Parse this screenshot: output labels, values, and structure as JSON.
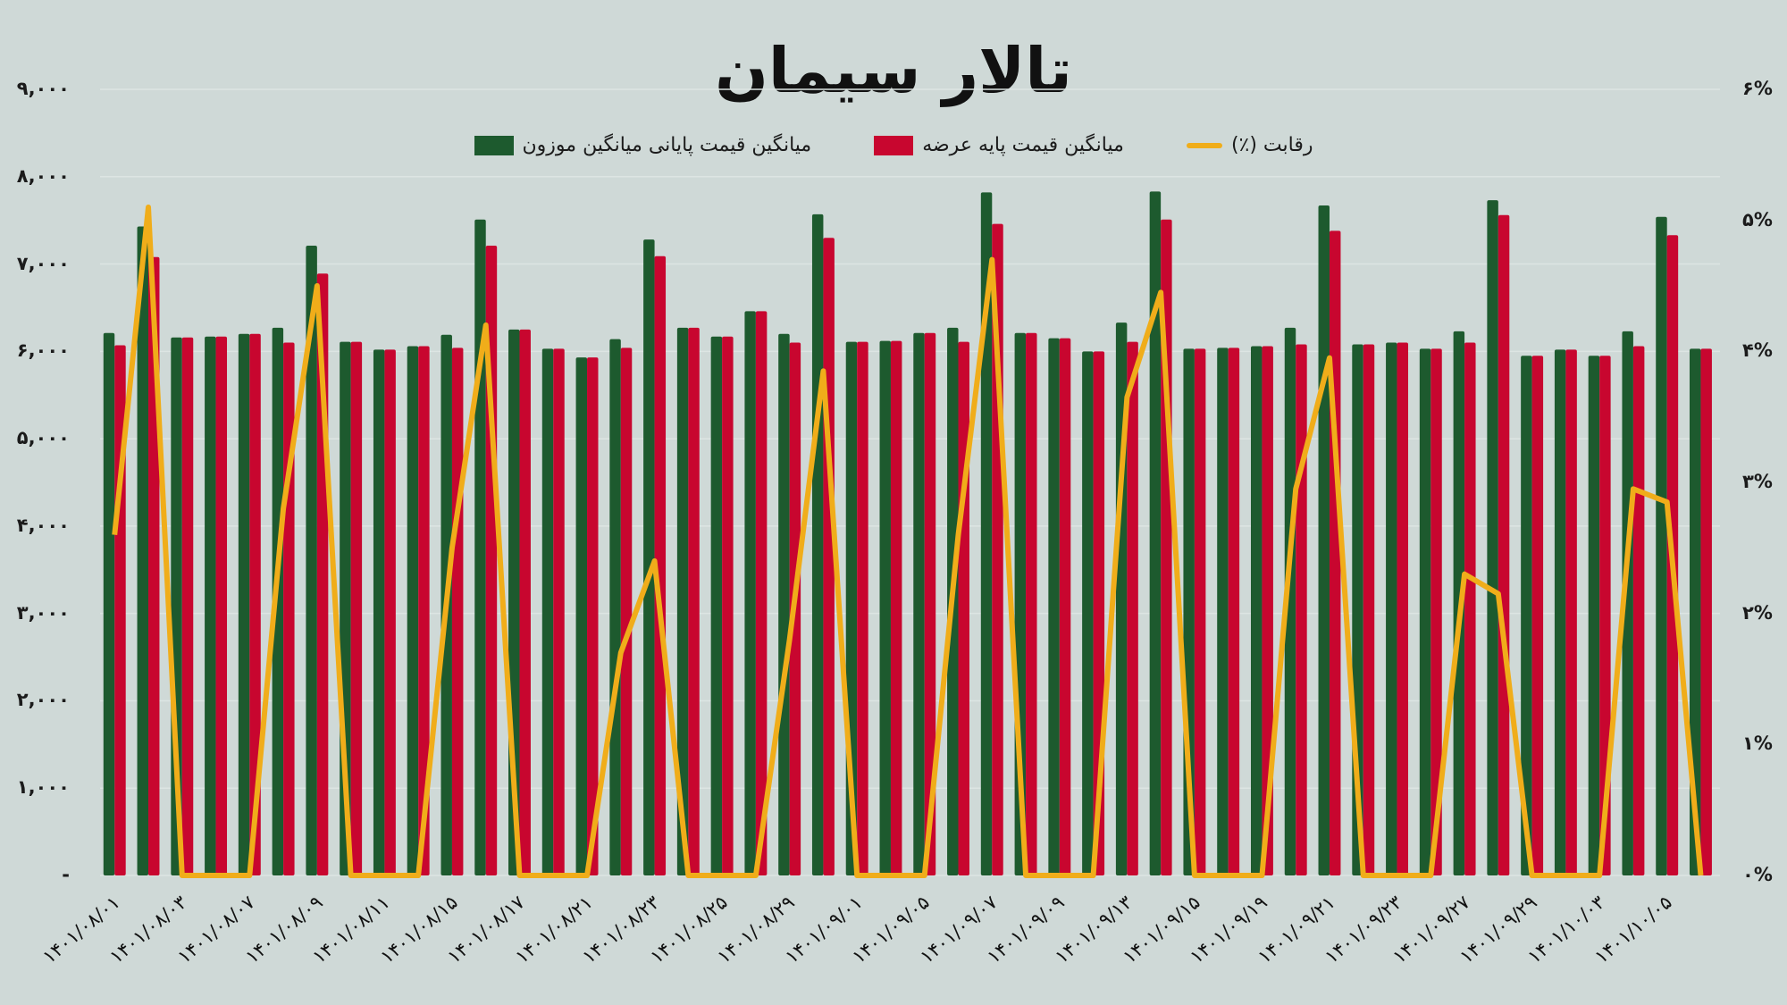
{
  "title": "تالار سیمان",
  "legend": [
    {
      "label": "رقابت (٪)",
      "type": "line",
      "color": "#f0ad1a"
    },
    {
      "label": "میانگین قیمت پایه عرضه",
      "type": "bar",
      "color": "#c8062f"
    },
    {
      "label": "میانگین قیمت پایانی میانگین موزون",
      "type": "bar",
      "color": "#1d5a2e"
    }
  ],
  "y_left_ticks": [
    "۹,۰۰۰",
    "۸,۰۰۰",
    "۷,۰۰۰",
    "۶,۰۰۰",
    "۵,۰۰۰",
    "۴,۰۰۰",
    "۳,۰۰۰",
    "۲,۰۰۰",
    "۱,۰۰۰",
    "-"
  ],
  "y_right_ticks": [
    "۶%",
    "۵%",
    "۴%",
    "۳%",
    "۲%",
    "۱%",
    "۰%"
  ],
  "x_labels": [
    "۱۴۰۱/۰۸/۰۱",
    "۱۴۰۱/۰۸/۰۳",
    "۱۴۰۱/۰۸/۰۷",
    "۱۴۰۱/۰۸/۰۹",
    "۱۴۰۱/۰۸/۱۱",
    "۱۴۰۱/۰۸/۱۵",
    "۱۴۰۱/۰۸/۱۷",
    "۱۴۰۱/۰۸/۲۱",
    "۱۴۰۱/۰۸/۲۳",
    "۱۴۰۱/۰۸/۲۵",
    "۱۴۰۱/۰۸/۲۹",
    "۱۴۰۱/۰۹/۰۱",
    "۱۴۰۱/۰۹/۰۵",
    "۱۴۰۱/۰۹/۰۷",
    "۱۴۰۱/۰۹/۰۹",
    "۱۴۰۱/۰۹/۱۳",
    "۱۴۰۱/۰۹/۱۵",
    "۱۴۰۱/۰۹/۱۹",
    "۱۴۰۱/۰۹/۲۱",
    "۱۴۰۱/۰۹/۲۳",
    "۱۴۰۱/۰۹/۲۷",
    "۱۴۰۱/۰۹/۲۹",
    "۱۴۰۱/۱۰/۰۳",
    "۱۴۰۱/۱۰/۰۵"
  ],
  "chart_data": {
    "type": "bar",
    "title": "تالار سیمان",
    "xlabel": "",
    "ylabel": "",
    "ylim": [
      0,
      9000
    ],
    "y2lim": [
      0,
      6
    ],
    "grid": true,
    "legend_position": "top",
    "categories": [
      "1401/08/01",
      "",
      "1401/08/03",
      "",
      "1401/08/07",
      "",
      "1401/08/09",
      "",
      "1401/08/11",
      "",
      "1401/08/15",
      "",
      "1401/08/17",
      "",
      "1401/08/21",
      "",
      "1401/08/23",
      "",
      "1401/08/25",
      "",
      "1401/08/29",
      "",
      "1401/09/01",
      "",
      "1401/09/05",
      "",
      "1401/09/07",
      "",
      "1401/09/09",
      "",
      "1401/09/13",
      "",
      "1401/09/15",
      "",
      "1401/09/19",
      "",
      "1401/09/21",
      "",
      "1401/09/23",
      "",
      "1401/09/27",
      "",
      "1401/09/29",
      "",
      "1401/10/03",
      "",
      "1401/10/05",
      ""
    ],
    "series": [
      {
        "name": "میانگین قیمت پایانی میانگین موزون",
        "type": "bar",
        "axis": "left",
        "color": "#1d5a2e",
        "values": [
          6210,
          7430,
          6160,
          6170,
          6200,
          6270,
          7210,
          6110,
          6020,
          6060,
          6190,
          7510,
          6250,
          6030,
          5930,
          6140,
          7280,
          6270,
          6170,
          6460,
          6200,
          7570,
          6110,
          6120,
          6210,
          6270,
          7820,
          6210,
          6150,
          6000,
          6330,
          7830,
          6030,
          6040,
          6060,
          6270,
          7670,
          6080,
          6100,
          6030,
          6230,
          7730,
          5950,
          6020,
          5950,
          6230,
          7540,
          6030
        ]
      },
      {
        "name": "میانگین قیمت پایه عرضه",
        "type": "bar",
        "axis": "left",
        "color": "#c8062f",
        "values": [
          6070,
          7080,
          6160,
          6170,
          6200,
          6100,
          6890,
          6110,
          6020,
          6060,
          6040,
          7210,
          6250,
          6030,
          5930,
          6040,
          7090,
          6270,
          6170,
          6460,
          6100,
          7300,
          6110,
          6120,
          6210,
          6110,
          7460,
          6210,
          6150,
          6000,
          6110,
          7510,
          6030,
          6040,
          6060,
          6080,
          7380,
          6080,
          6100,
          6030,
          6100,
          7560,
          5950,
          6020,
          5950,
          6060,
          7330,
          6030
        ]
      },
      {
        "name": "رقابت (٪)",
        "type": "line",
        "axis": "right",
        "color": "#f0ad1a",
        "values": [
          2.6,
          5.1,
          0,
          0,
          0,
          2.8,
          4.5,
          0,
          0,
          0,
          2.5,
          4.2,
          0,
          0,
          0,
          1.7,
          2.4,
          0,
          0,
          0,
          1.8,
          3.85,
          0,
          0,
          0,
          2.6,
          4.7,
          0,
          0,
          0,
          3.65,
          4.45,
          0,
          0,
          0,
          2.95,
          3.95,
          0,
          0,
          0,
          2.3,
          2.15,
          0,
          0,
          0,
          2.95,
          2.85,
          0
        ]
      }
    ]
  }
}
